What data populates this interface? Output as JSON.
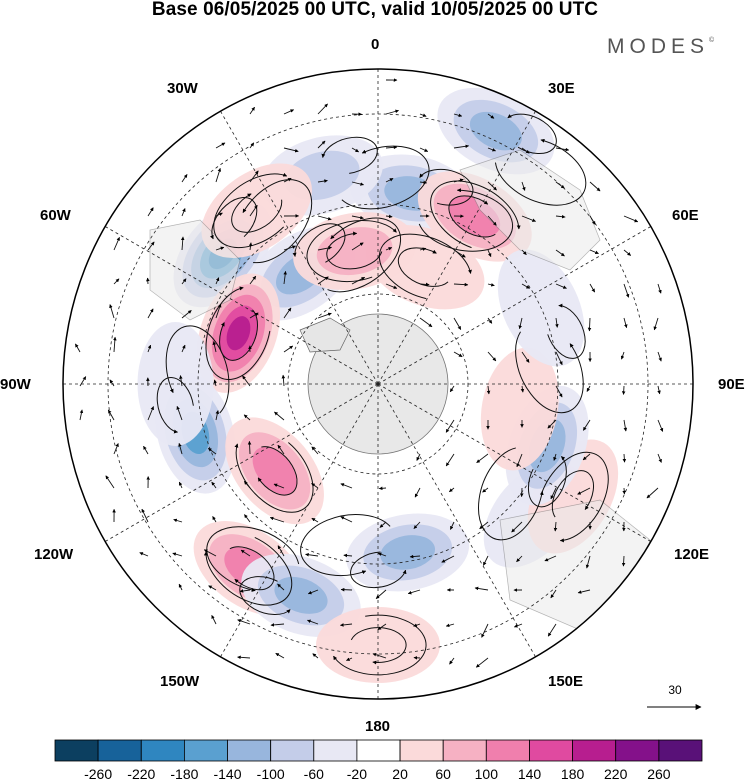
{
  "title": "Base 06/05/2025 00 UTC, valid 10/05/2025 00 UTC",
  "brand": "MODES",
  "brand_mark": "©",
  "longitudes": {
    "lon0": "0",
    "lon30e": "30E",
    "lon60e": "60E",
    "lon90e": "90E",
    "lon120e": "120E",
    "lon150e": "150E",
    "lon180": "180",
    "lon150w": "150W",
    "lon120w": "120W",
    "lon90w": "90W",
    "lon60w": "60W",
    "lon30w": "30W"
  },
  "reference_vector": {
    "value": "30"
  },
  "colorbar": {
    "colors": [
      "#0c3f60",
      "#17629a",
      "#2f86c0",
      "#5aa0d0",
      "#98b6dd",
      "#c4cde9",
      "#e8e8f4",
      "#ffffff",
      "#fbdada",
      "#f6b1c3",
      "#f07fad",
      "#e04aa0",
      "#b71e8f",
      "#84118a",
      "#591178"
    ],
    "labels": [
      "-260",
      "-220",
      "-180",
      "-140",
      "-100",
      "-60",
      "-20",
      "20",
      "60",
      "100",
      "140",
      "180",
      "220",
      "260"
    ]
  },
  "map_data": {
    "projection": "south-polar-stereographic",
    "anomalies": [
      {
        "lon": 10,
        "lat": -47,
        "value": -140
      },
      {
        "lon": 30,
        "lat": -47,
        "value": 130
      },
      {
        "lon": 22,
        "lat": -62,
        "value": 60
      },
      {
        "lon": -15,
        "lat": -42,
        "value": -90
      },
      {
        "lon": 25,
        "lat": -28,
        "value": -140
      },
      {
        "lon": -50,
        "lat": -45,
        "value": -200
      },
      {
        "lon": -35,
        "lat": -60,
        "value": -140
      },
      {
        "lon": -10,
        "lat": -60,
        "value": 80
      },
      {
        "lon": -70,
        "lat": -57,
        "value": 220
      },
      {
        "lon": -35,
        "lat": -43,
        "value": 60
      },
      {
        "lon": -105,
        "lat": -48,
        "value": -170
      },
      {
        "lon": -90,
        "lat": -45,
        "value": -40
      },
      {
        "lon": -145,
        "lat": -40,
        "value": 150
      },
      {
        "lon": -130,
        "lat": -60,
        "value": 140
      },
      {
        "lon": -160,
        "lat": -40,
        "value": -120
      },
      {
        "lon": 170,
        "lat": -52,
        "value": -140
      },
      {
        "lon": 130,
        "lat": -45,
        "value": -40
      },
      {
        "lon": 120,
        "lat": -40,
        "value": 60
      },
      {
        "lon": 110,
        "lat": -50,
        "value": -120
      },
      {
        "lon": 100,
        "lat": -58,
        "value": 50
      },
      {
        "lon": 180,
        "lat": -32,
        "value": 60
      },
      {
        "lon": 55,
        "lat": -55,
        "value": 30
      },
      {
        "lon": 65,
        "lat": -50,
        "value": -60
      }
    ]
  }
}
